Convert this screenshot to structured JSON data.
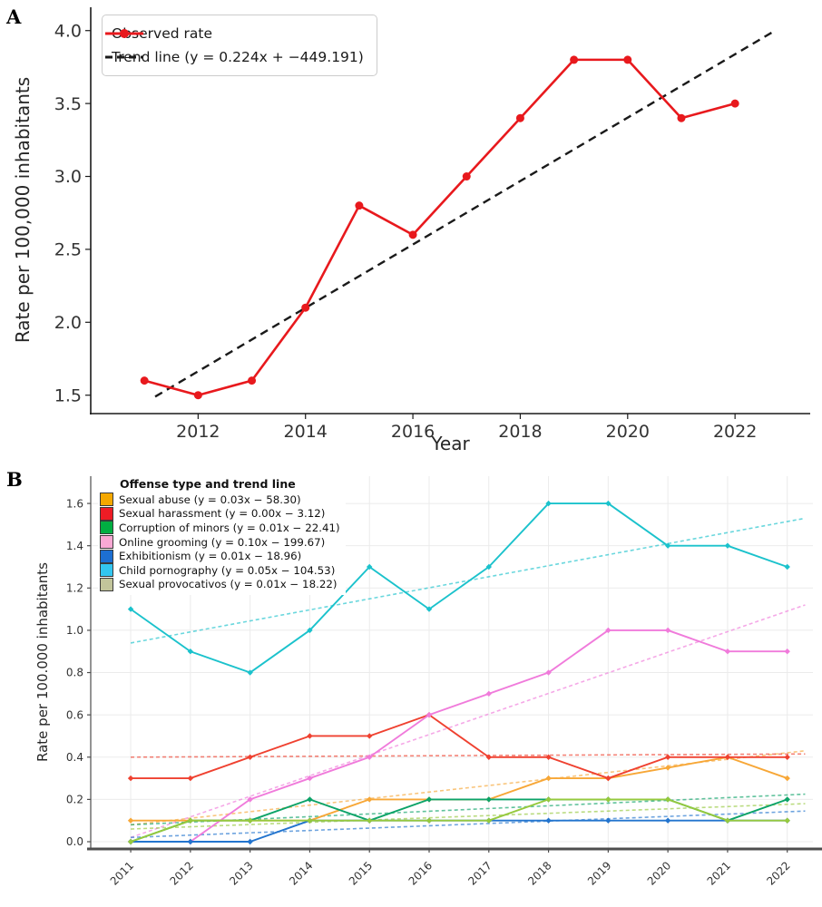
{
  "panels": {
    "a_label": "A",
    "b_label": "B"
  },
  "chart_data": [
    {
      "id": "A",
      "type": "line",
      "title": "",
      "xlabel": "Year",
      "ylabel": "Rate per 100,000 inhabitants",
      "x": [
        2011,
        2012,
        2013,
        2014,
        2015,
        2016,
        2017,
        2018,
        2019,
        2020,
        2021,
        2022
      ],
      "xticks": [
        "2012",
        "2014",
        "2016",
        "2018",
        "2020",
        "2022"
      ],
      "xtick_values": [
        2012,
        2014,
        2016,
        2018,
        2020,
        2022
      ],
      "yticks": [
        "1.5",
        "2.0",
        "2.5",
        "3.0",
        "3.5",
        "4.0"
      ],
      "ytick_values": [
        1.5,
        2.0,
        2.5,
        3.0,
        3.5,
        4.0
      ],
      "xlim": [
        2010.0,
        2023.4
      ],
      "ylim": [
        1.38,
        4.16
      ],
      "grid": false,
      "legend_position": "top-left",
      "series": [
        {
          "name": "Observed rate",
          "color": "#e8191d",
          "style": "solid",
          "marker": true,
          "values": [
            1.6,
            1.5,
            1.6,
            2.1,
            2.8,
            2.6,
            3.0,
            3.4,
            3.8,
            3.8,
            3.4,
            3.5
          ]
        },
        {
          "name": "Trend line (y = 0.224x + −449.191)",
          "color": "#1a1a1a",
          "style": "dashed",
          "marker": false,
          "trend_x": [
            2011.2,
            2022.7
          ],
          "trend_y": [
            1.49,
            3.99
          ]
        }
      ]
    },
    {
      "id": "B",
      "type": "line",
      "title": "",
      "xlabel": "",
      "ylabel": "Rate per 100.000 inhabitants",
      "legend_title": "Offense type and trend line",
      "x": [
        2011,
        2012,
        2013,
        2014,
        2015,
        2016,
        2017,
        2018,
        2019,
        2020,
        2021,
        2022
      ],
      "xticks": [
        "2011",
        "2012",
        "2013",
        "2014",
        "2015",
        "2016",
        "2017",
        "2018",
        "2019",
        "2020",
        "2021",
        "2022"
      ],
      "xtick_values": [
        2011,
        2012,
        2013,
        2014,
        2015,
        2016,
        2017,
        2018,
        2019,
        2020,
        2021,
        2022
      ],
      "yticks": [
        "0.0",
        "0.2",
        "0.4",
        "0.6",
        "0.8",
        "1.0",
        "1.2",
        "1.4",
        "1.6"
      ],
      "ytick_values": [
        0.0,
        0.2,
        0.4,
        0.6,
        0.8,
        1.0,
        1.2,
        1.4,
        1.6
      ],
      "xlim": [
        2010.33,
        2022.43
      ],
      "ylim": [
        -0.03,
        1.729
      ],
      "grid": true,
      "legend_position": "top-left",
      "trend_x": [
        2011,
        2022.3
      ],
      "series": [
        {
          "name": "Sexual abuse (y = 0.03x − 58.30)",
          "color": "#f7a737",
          "swatch": "#f5a800",
          "values": [
            0.1,
            0.1,
            0.1,
            0.1,
            0.2,
            0.2,
            0.2,
            0.3,
            0.3,
            0.35,
            0.4,
            0.3
          ],
          "trend_y": [
            0.08,
            0.43
          ]
        },
        {
          "name": "Sexual harassment (y = 0.00x − 3.12)",
          "color": "#ef4130",
          "swatch": "#ee1c25",
          "values": [
            0.3,
            0.3,
            0.4,
            0.5,
            0.5,
            0.6,
            0.4,
            0.4,
            0.3,
            0.4,
            0.4,
            0.4
          ],
          "trend_y": [
            0.4,
            0.415
          ]
        },
        {
          "name": "Corruption of minors (y = 0.01x − 22.41)",
          "color": "#0ca368",
          "swatch": "#00ae42",
          "values": [
            0.0,
            0.1,
            0.1,
            0.2,
            0.1,
            0.2,
            0.2,
            0.2,
            0.2,
            0.2,
            0.1,
            0.2
          ],
          "trend_y": [
            0.08,
            0.225
          ]
        },
        {
          "name": "Online grooming (y = 0.10x − 199.67)",
          "color": "#f07bdb",
          "swatch": "#f9a8d4",
          "values": [
            0.0,
            0.0,
            0.2,
            0.3,
            0.4,
            0.6,
            0.7,
            0.8,
            1.0,
            1.0,
            0.9,
            0.9
          ],
          "trend_y": [
            0.02,
            1.12
          ]
        },
        {
          "name": "Exhibitionism (y = 0.01x − 18.96)",
          "color": "#2274ce",
          "swatch": "#1d6fd2",
          "values": [
            0.0,
            0.0,
            0.0,
            0.1,
            0.1,
            0.1,
            0.1,
            0.1,
            0.1,
            0.1,
            0.1,
            0.1
          ],
          "trend_y": [
            0.02,
            0.145
          ]
        },
        {
          "name": "Child pornography (y = 0.05x − 104.53)",
          "color": "#1bc2cc",
          "swatch": "#33c6f0",
          "values": [
            1.1,
            0.9,
            0.8,
            1.0,
            1.3,
            1.1,
            1.3,
            1.6,
            1.6,
            1.4,
            1.4,
            1.3
          ],
          "trend_y": [
            0.94,
            1.53
          ]
        },
        {
          "name": "Sexual provocativos (y = 0.01x − 18.22)",
          "color": "#96c93d",
          "swatch": "#c2c59b",
          "values": [
            0.0,
            0.1,
            0.1,
            0.1,
            0.1,
            0.1,
            0.1,
            0.2,
            0.2,
            0.2,
            0.1,
            0.1
          ],
          "trend_y": [
            0.06,
            0.18
          ]
        }
      ]
    }
  ]
}
